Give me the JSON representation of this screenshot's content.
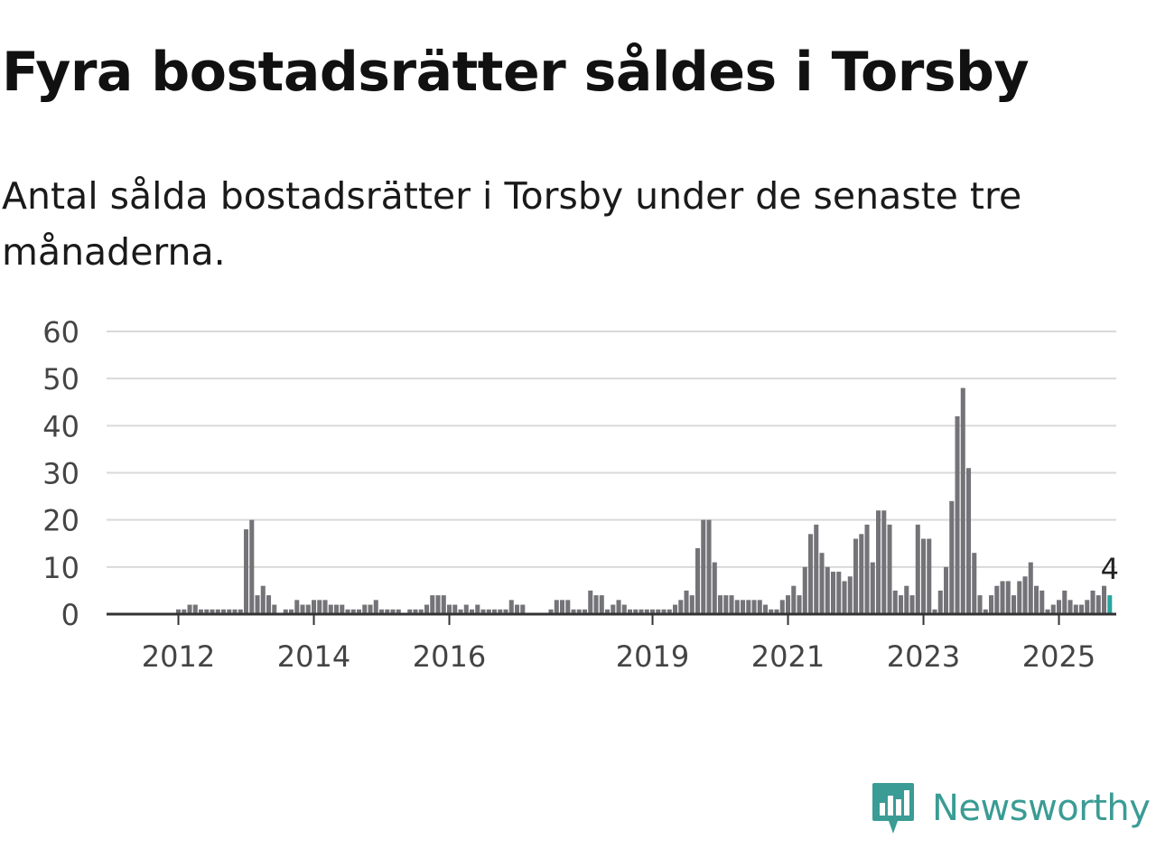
{
  "header": {
    "title": "Fyra bostadsrätter såldes i Torsby",
    "subtitle": "Antal sålda bostadsrätter i Torsby under de senaste tre månaderna."
  },
  "brand": {
    "name": "Newsworthy",
    "icon": "newsworthy-logo-icon",
    "color": "#3a9c94"
  },
  "colors": {
    "bar": "#747378",
    "highlight": "#27a79e",
    "grid": "#d9d9d9",
    "axis": "#333333"
  },
  "chart_data": {
    "type": "bar",
    "title": "Fyra bostadsrätter såldes i Torsby",
    "subtitle": "Antal sålda bostadsrätter i Torsby under de senaste tre månaderna.",
    "x_unit": "month",
    "start": "2011-01",
    "ylim": [
      0,
      60
    ],
    "y_ticks": [
      0,
      10,
      20,
      30,
      40,
      50,
      60
    ],
    "x_ticks": [
      {
        "label": "2012",
        "date": "2012-01"
      },
      {
        "label": "2014",
        "date": "2014-01"
      },
      {
        "label": "2016",
        "date": "2016-01"
      },
      {
        "label": "2019",
        "date": "2019-01"
      },
      {
        "label": "2021",
        "date": "2021-01"
      },
      {
        "label": "2023",
        "date": "2023-01"
      },
      {
        "label": "2025",
        "date": "2025-01"
      }
    ],
    "grid": true,
    "values": [
      0,
      0,
      0,
      0,
      0,
      0,
      0,
      0,
      0,
      0,
      0,
      0,
      1,
      1,
      2,
      2,
      1,
      1,
      1,
      1,
      1,
      1,
      1,
      1,
      18,
      20,
      4,
      6,
      4,
      2,
      0,
      1,
      1,
      3,
      2,
      2,
      3,
      3,
      3,
      2,
      2,
      2,
      1,
      1,
      1,
      2,
      2,
      3,
      1,
      1,
      1,
      1,
      0,
      1,
      1,
      1,
      2,
      4,
      4,
      4,
      2,
      2,
      1,
      2,
      1,
      2,
      1,
      1,
      1,
      1,
      1,
      3,
      2,
      2,
      0,
      0,
      0,
      0,
      1,
      3,
      3,
      3,
      1,
      1,
      1,
      5,
      4,
      4,
      1,
      2,
      3,
      2,
      1,
      1,
      1,
      1,
      1,
      1,
      1,
      1,
      2,
      3,
      5,
      4,
      14,
      20,
      20,
      11,
      4,
      4,
      4,
      3,
      3,
      3,
      3,
      3,
      2,
      1,
      1,
      3,
      4,
      6,
      4,
      10,
      17,
      19,
      13,
      10,
      9,
      9,
      7,
      8,
      16,
      17,
      19,
      11,
      22,
      22,
      19,
      5,
      4,
      6,
      4,
      19,
      16,
      16,
      1,
      5,
      10,
      24,
      42,
      48,
      31,
      13,
      4,
      1,
      4,
      6,
      7,
      7,
      4,
      7,
      8,
      11,
      6,
      5,
      1,
      2,
      3,
      5,
      3,
      2,
      2,
      3,
      5,
      4,
      6,
      4
    ],
    "highlight_last": true,
    "annotation": {
      "text": "4",
      "target": "last"
    }
  }
}
